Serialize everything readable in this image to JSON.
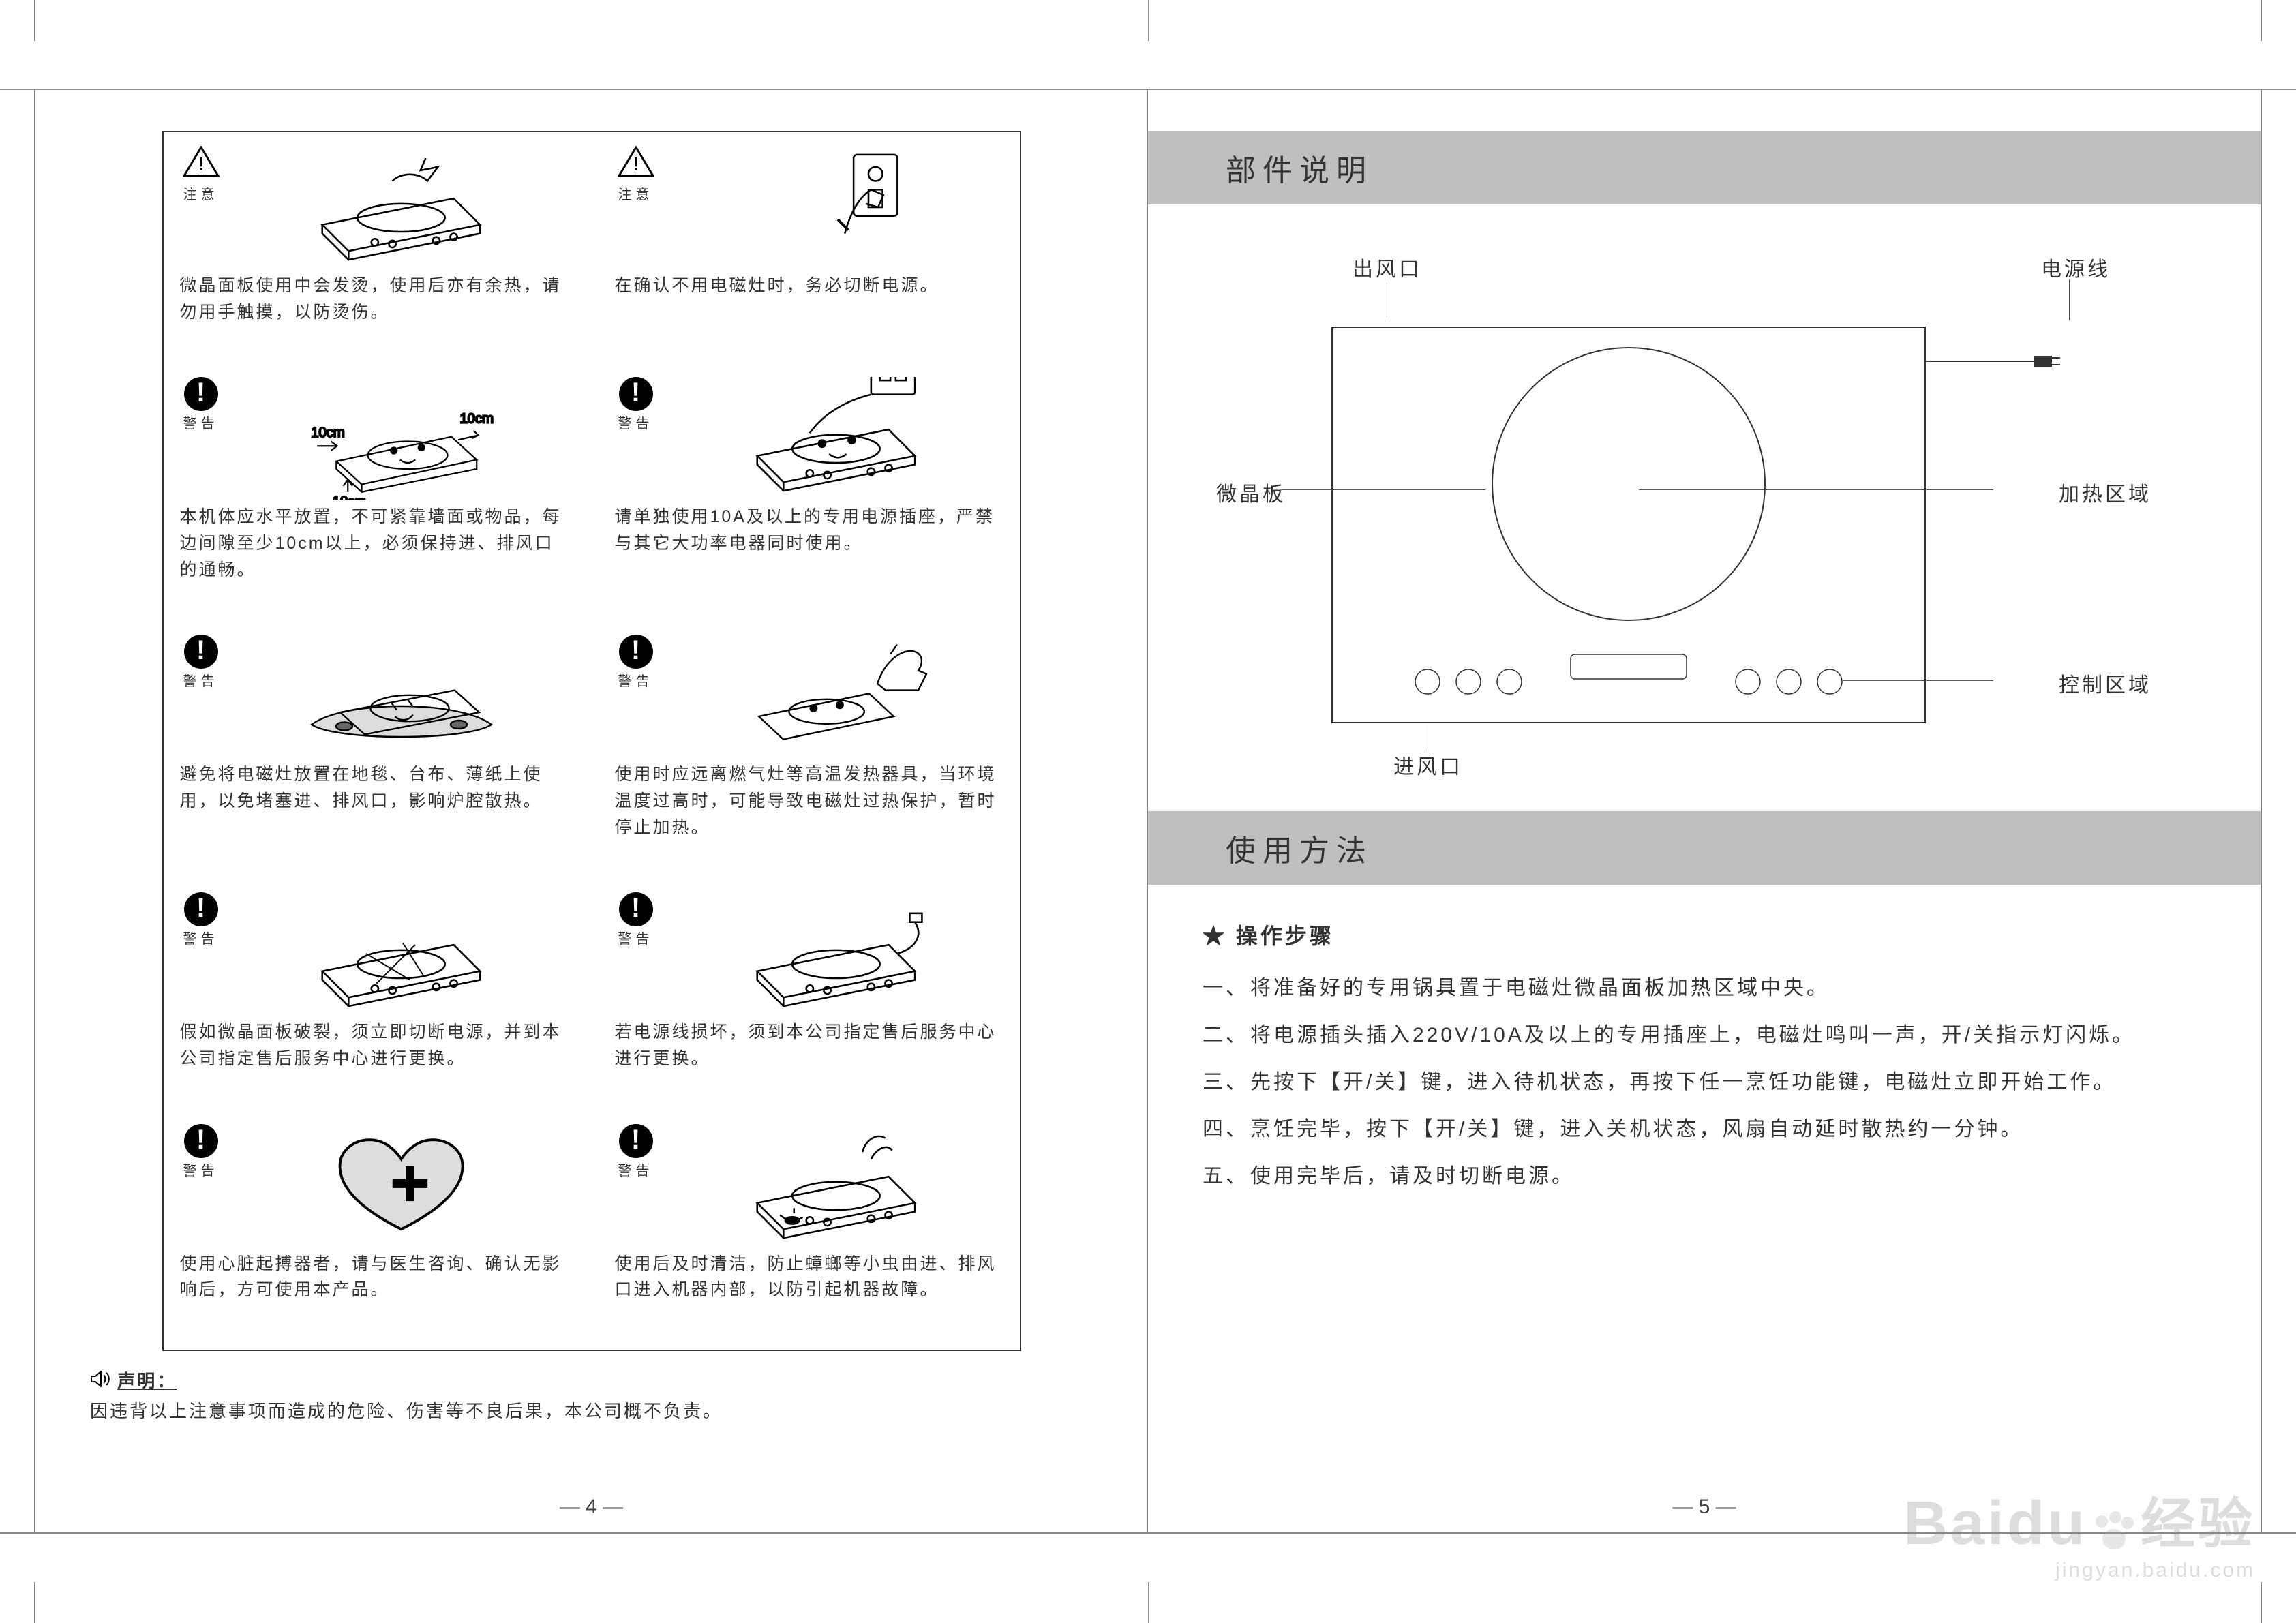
{
  "colors": {
    "section_bg": "#bfbfbf",
    "border": "#888888",
    "text": "#333333",
    "icon_bg": "#000000"
  },
  "left": {
    "icon_attention": "注意",
    "icon_warning": "警告",
    "cells": [
      {
        "type": "attention",
        "text": "微晶面板使用中会发烫，使用后亦有余热，请勿用手触摸，以防烫伤。"
      },
      {
        "type": "attention",
        "text": "在确认不用电磁灶时，务必切断电源。"
      },
      {
        "type": "warning",
        "text": "本机体应水平放置，不可紧靠墙面或物品，每边间隙至少10cm以上，必须保持进、排风口的通畅。",
        "arrows": "10cm"
      },
      {
        "type": "warning",
        "text": "请单独使用10A及以上的专用电源插座，严禁与其它大功率电器同时使用。"
      },
      {
        "type": "warning",
        "text": "避免将电磁灶放置在地毯、台布、薄纸上使用，以免堵塞进、排风口，影响炉腔散热。"
      },
      {
        "type": "warning",
        "text": "使用时应远离燃气灶等高温发热器具，当环境温度过高时，可能导致电磁灶过热保护，暂时停止加热。"
      },
      {
        "type": "warning",
        "text": "假如微晶面板破裂，须立即切断电源，并到本公司指定售后服务中心进行更换。"
      },
      {
        "type": "warning",
        "text": "若电源线损坏，须到本公司指定售后服务中心进行更换。"
      },
      {
        "type": "warning",
        "text": "使用心脏起搏器者，请与医生咨询、确认无影响后，方可使用本产品。"
      },
      {
        "type": "warning",
        "text": "使用后及时清洁，防止蟑螂等小虫由进、排风口进入机器内部，以防引起机器故障。"
      }
    ],
    "declaration_label": "声明：",
    "declaration_text": "因违背以上注意事项而造成的危险、伤害等不良后果，本公司概不负责。",
    "page_no": "— 4 —"
  },
  "right": {
    "section1_title": "部件说明",
    "labels": {
      "air_out": "出风口",
      "power_cord": "电源线",
      "plate": "微晶板",
      "heat_zone": "加热区域",
      "control_zone": "控制区域",
      "air_in": "进风口"
    },
    "section2_title": "使用方法",
    "steps_title": "★ 操作步骤",
    "steps": [
      {
        "n": "一、",
        "t": "将准备好的专用锅具置于电磁灶微晶面板加热区域中央。"
      },
      {
        "n": "二、",
        "t": "将电源插头插入220V/10A及以上的专用插座上，电磁灶鸣叫一声，开/关指示灯闪烁。"
      },
      {
        "n": "三、",
        "t": "先按下【开/关】键，进入待机状态，再按下任一烹饪功能键，电磁灶立即开始工作。"
      },
      {
        "n": "四、",
        "t": "烹饪完毕，按下【开/关】键，进入关机状态，风扇自动延时散热约一分钟。"
      },
      {
        "n": "五、",
        "t": "使用完毕后，请及时切断电源。"
      }
    ],
    "page_no": "— 5 —"
  },
  "watermark": {
    "brand": "Baidu",
    "suffix": "经验",
    "url": "jingyan.baidu.com"
  }
}
